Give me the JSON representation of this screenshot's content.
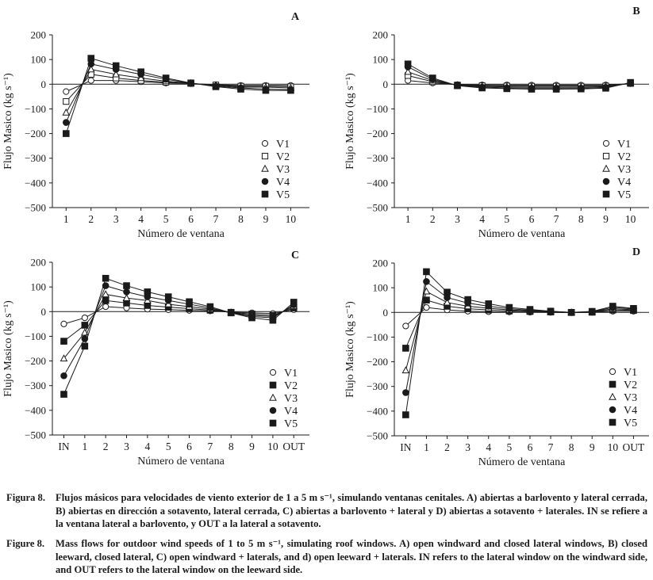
{
  "charts": [
    {
      "panel": "A",
      "type": "line",
      "categories": [
        "1",
        "2",
        "3",
        "4",
        "5",
        "6",
        "7",
        "8",
        "9",
        "10"
      ],
      "xlabel": "Número de ventana",
      "ylabel": "Flujo Masico (kg s⁻¹)",
      "ylim": [
        -500,
        200
      ],
      "yticks": [
        -500,
        -400,
        -300,
        -200,
        -100,
        0,
        100,
        200
      ],
      "legend": "lower-right",
      "series": [
        {
          "name": "V1",
          "marker": "circle-open",
          "values": [
            -30,
            15,
            15,
            10,
            5,
            2,
            -2,
            -5,
            -5,
            -5
          ]
        },
        {
          "name": "V2",
          "marker": "square-open",
          "values": [
            -70,
            40,
            25,
            15,
            8,
            3,
            -3,
            -8,
            -8,
            -10
          ]
        },
        {
          "name": "V3",
          "marker": "triangle-open",
          "values": [
            -115,
            60,
            40,
            25,
            12,
            4,
            -5,
            -12,
            -12,
            -15
          ]
        },
        {
          "name": "V4",
          "marker": "circle-filled",
          "values": [
            -155,
            82,
            60,
            40,
            20,
            4,
            -8,
            -15,
            -20,
            -22
          ]
        },
        {
          "name": "V5",
          "marker": "square-filled",
          "values": [
            -200,
            105,
            75,
            50,
            25,
            5,
            -10,
            -20,
            -25,
            -25
          ]
        }
      ]
    },
    {
      "panel": "B",
      "type": "line",
      "categories": [
        "1",
        "2",
        "3",
        "4",
        "5",
        "6",
        "7",
        "8",
        "9",
        "10"
      ],
      "xlabel": "Número de ventana",
      "ylabel": "Flujo Masico (kg s⁻¹)",
      "ylim": [
        -500,
        200
      ],
      "yticks": [
        -500,
        -400,
        -300,
        -200,
        -100,
        0,
        100,
        200
      ],
      "legend": "lower-right",
      "series": [
        {
          "name": "V1",
          "marker": "circle-open",
          "values": [
            15,
            5,
            -2,
            -3,
            -3,
            -4,
            -4,
            -4,
            -3,
            2
          ]
        },
        {
          "name": "V2",
          "marker": "square-open",
          "values": [
            35,
            10,
            -3,
            -6,
            -7,
            -8,
            -8,
            -8,
            -7,
            3
          ]
        },
        {
          "name": "V3",
          "marker": "triangle-open",
          "values": [
            50,
            15,
            -4,
            -9,
            -11,
            -12,
            -12,
            -12,
            -10,
            4
          ]
        },
        {
          "name": "V4",
          "marker": "circle-filled",
          "values": [
            70,
            20,
            -5,
            -12,
            -15,
            -16,
            -16,
            -16,
            -13,
            5
          ]
        },
        {
          "name": "V5",
          "marker": "square-filled",
          "values": [
            82,
            25,
            -6,
            -15,
            -18,
            -20,
            -20,
            -19,
            -16,
            7
          ]
        }
      ]
    },
    {
      "panel": "C",
      "type": "line",
      "categories": [
        "IN",
        "1",
        "2",
        "3",
        "4",
        "5",
        "6",
        "7",
        "8",
        "9",
        "10",
        "OUT"
      ],
      "xlabel": "Número de ventana",
      "ylabel": "Flujo Masico (kg s⁻¹)",
      "ylim": [
        -500,
        200
      ],
      "yticks": [
        -500,
        -400,
        -300,
        -200,
        -100,
        0,
        100,
        200
      ],
      "legend": "lower-right",
      "series": [
        {
          "name": "V1",
          "marker": "circle-open",
          "values": [
            -50,
            -25,
            20,
            15,
            10,
            8,
            5,
            3,
            -2,
            -5,
            -8,
            8
          ]
        },
        {
          "name": "V2",
          "marker": "square-filled",
          "values": [
            -120,
            -55,
            45,
            35,
            25,
            18,
            12,
            6,
            -3,
            -10,
            -15,
            15
          ]
        },
        {
          "name": "V3",
          "marker": "triangle-open",
          "values": [
            -190,
            -85,
            70,
            55,
            45,
            30,
            20,
            10,
            -4,
            -15,
            -20,
            22
          ]
        },
        {
          "name": "V4",
          "marker": "circle-filled",
          "values": [
            -260,
            -110,
            105,
            80,
            60,
            45,
            30,
            15,
            -5,
            -20,
            -25,
            28
          ]
        },
        {
          "name": "V5",
          "marker": "square-filled",
          "values": [
            -335,
            -140,
            135,
            105,
            80,
            60,
            40,
            20,
            -5,
            -25,
            -35,
            38
          ]
        }
      ]
    },
    {
      "panel": "D",
      "type": "line",
      "categories": [
        "IN",
        "1",
        "2",
        "3",
        "4",
        "5",
        "6",
        "7",
        "8",
        "9",
        "10",
        "OUT"
      ],
      "xlabel": "Número de ventana",
      "ylabel": "Flujo Masico (kg s⁻¹)",
      "ylim": [
        -500,
        200
      ],
      "yticks": [
        -500,
        -400,
        -300,
        -200,
        -100,
        0,
        100,
        200
      ],
      "legend": "lower-right",
      "series": [
        {
          "name": "V1",
          "marker": "circle-open",
          "values": [
            -55,
            20,
            10,
            5,
            3,
            2,
            1,
            0,
            -1,
            0,
            5,
            5
          ]
        },
        {
          "name": "V2",
          "marker": "square-filled",
          "values": [
            -145,
            50,
            25,
            15,
            10,
            6,
            4,
            2,
            0,
            1,
            10,
            8
          ]
        },
        {
          "name": "V3",
          "marker": "triangle-open",
          "values": [
            -235,
            85,
            40,
            25,
            17,
            10,
            6,
            3,
            0,
            2,
            15,
            11
          ]
        },
        {
          "name": "V4",
          "marker": "circle-filled",
          "values": [
            -325,
            125,
            60,
            38,
            25,
            15,
            9,
            4,
            0,
            3,
            20,
            14
          ]
        },
        {
          "name": "V5",
          "marker": "square-filled",
          "values": [
            -415,
            165,
            82,
            52,
            35,
            20,
            12,
            5,
            0,
            4,
            25,
            16
          ]
        }
      ]
    }
  ],
  "caption_es": {
    "label": "Figura 8.",
    "text": "Flujos másicos para velocidades de viento exterior de 1 a 5 m s⁻¹, simulando ventanas cenitales. A) abiertas a barlovento y lateral cerrada, B) abiertas en dirección a sotavento, lateral cerrada, C) abiertas a barlovento + lateral y D) abiertas a sotavento + laterales. IN se refiere a la ventana lateral a barlovento, y OUT a la lateral a sotavento."
  },
  "caption_en": {
    "label": "Figure 8.",
    "text": "Mass flows for outdoor wind speeds of 1 to 5 m s⁻¹, simulating roof windows. A) open windward and closed lateral windows, B) closed leeward, closed lateral, C) open windward + laterals, and d) open leeward + laterals. IN refers to the lateral window on the windward side, and OUT refers to the lateral window on the leeward side."
  }
}
